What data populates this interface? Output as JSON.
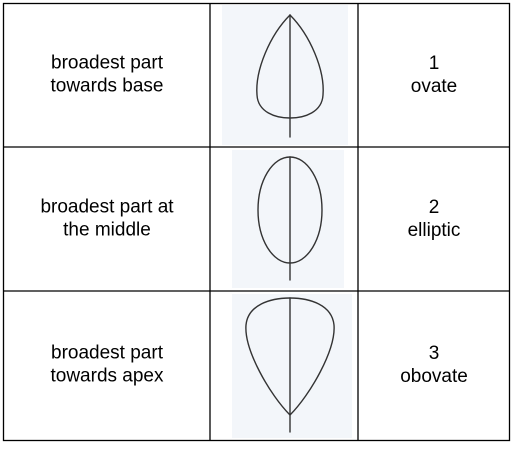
{
  "table": {
    "rows": [
      {
        "description": [
          "broadest part",
          "towards base"
        ],
        "number": 1,
        "name": "ovate"
      },
      {
        "description": [
          "broadest part at",
          "the middle"
        ],
        "number": 2,
        "name": "elliptic"
      },
      {
        "description": [
          "broadest part",
          "towards apex"
        ],
        "number": 3,
        "name": "obovate"
      }
    ]
  }
}
